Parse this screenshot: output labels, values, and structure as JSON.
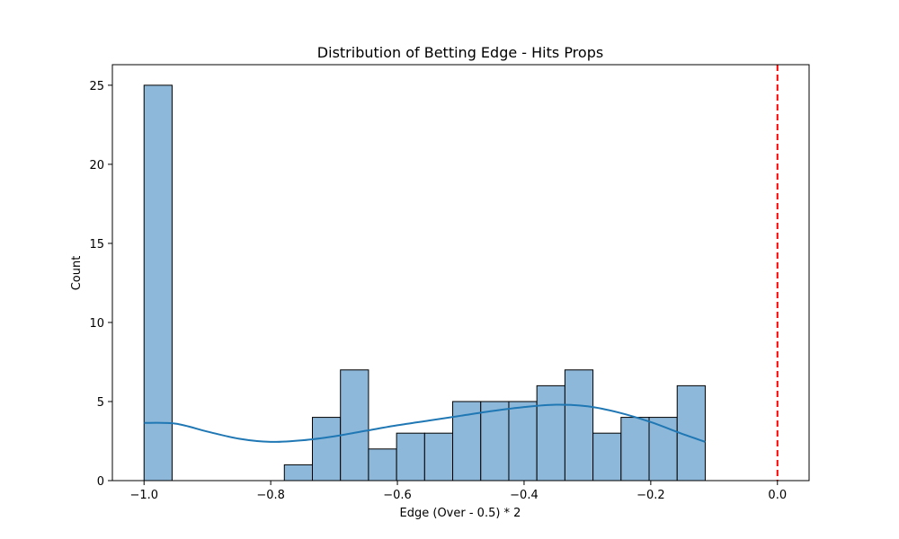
{
  "chart_data": {
    "type": "bar",
    "title": "Distribution of Betting Edge - Hits Props",
    "xlabel": "Edge (Over - 0.5) * 2",
    "ylabel": "Count",
    "xlim": [
      -1.05,
      0.05
    ],
    "ylim": [
      0,
      26.3
    ],
    "x_ticks": [
      -1.0,
      -0.8,
      -0.6,
      -0.4,
      -0.2,
      0.0
    ],
    "x_tick_labels": [
      "−1.0",
      "−0.8",
      "−0.6",
      "−0.4",
      "−0.2",
      "0.0"
    ],
    "y_ticks": [
      0,
      5,
      10,
      15,
      20,
      25
    ],
    "y_tick_labels": [
      "0",
      "5",
      "10",
      "15",
      "20",
      "25"
    ],
    "grid": false,
    "bars": [
      {
        "x0": -1.0,
        "x1": -0.9557,
        "count": 25
      },
      {
        "x0": -0.9557,
        "x1": -0.9114,
        "count": 0
      },
      {
        "x0": -0.9114,
        "x1": -0.8671,
        "count": 0
      },
      {
        "x0": -0.8671,
        "x1": -0.8228,
        "count": 0
      },
      {
        "x0": -0.8228,
        "x1": -0.7785,
        "count": 0
      },
      {
        "x0": -0.7785,
        "x1": -0.7342,
        "count": 1
      },
      {
        "x0": -0.7342,
        "x1": -0.6899,
        "count": 4
      },
      {
        "x0": -0.6899,
        "x1": -0.6456,
        "count": 7
      },
      {
        "x0": -0.6456,
        "x1": -0.6013,
        "count": 2
      },
      {
        "x0": -0.6013,
        "x1": -0.557,
        "count": 3
      },
      {
        "x0": -0.557,
        "x1": -0.5127,
        "count": 3
      },
      {
        "x0": -0.5127,
        "x1": -0.4684,
        "count": 5
      },
      {
        "x0": -0.4684,
        "x1": -0.4241,
        "count": 5
      },
      {
        "x0": -0.4241,
        "x1": -0.3798,
        "count": 5
      },
      {
        "x0": -0.3798,
        "x1": -0.3355,
        "count": 6
      },
      {
        "x0": -0.3355,
        "x1": -0.2912,
        "count": 7
      },
      {
        "x0": -0.2912,
        "x1": -0.2469,
        "count": 3
      },
      {
        "x0": -0.2469,
        "x1": -0.2026,
        "count": 4
      },
      {
        "x0": -0.2026,
        "x1": -0.1583,
        "count": 4
      },
      {
        "x0": -0.1583,
        "x1": -0.114,
        "count": 6
      }
    ],
    "kde": {
      "x": [
        -1.0,
        -0.95,
        -0.9,
        -0.85,
        -0.8,
        -0.75,
        -0.7,
        -0.65,
        -0.6,
        -0.55,
        -0.5,
        -0.45,
        -0.4,
        -0.35,
        -0.3,
        -0.25,
        -0.2,
        -0.15,
        -0.114
      ],
      "y": [
        3.65,
        3.6,
        3.1,
        2.65,
        2.45,
        2.55,
        2.8,
        3.15,
        3.5,
        3.8,
        4.1,
        4.4,
        4.65,
        4.8,
        4.7,
        4.3,
        3.7,
        2.95,
        2.45
      ]
    },
    "reference_line": {
      "x": 0.0,
      "color": "#ff0000",
      "style": "dashed"
    },
    "colors": {
      "bar_fill": "#8db8d9",
      "bar_edge": "#000000",
      "kde": "#1f77b4"
    }
  }
}
